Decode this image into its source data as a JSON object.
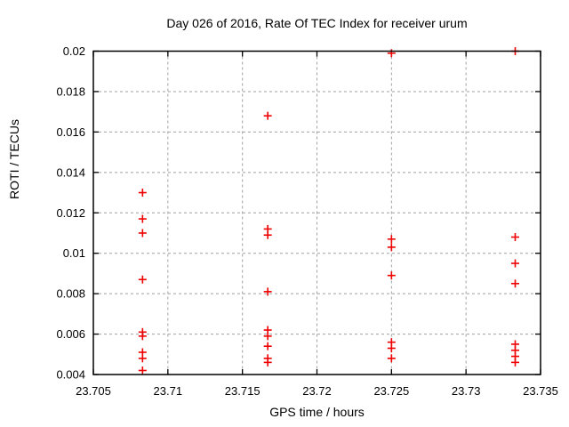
{
  "chart_data": {
    "type": "scatter",
    "title": "Day 026 of 2016, Rate Of TEC Index for receiver urum",
    "xlabel": "GPS time / hours",
    "ylabel": "ROTI / TECUs",
    "xlim": [
      23.705,
      23.735
    ],
    "ylim": [
      0.004,
      0.02
    ],
    "xticks": [
      23.705,
      23.71,
      23.715,
      23.72,
      23.725,
      23.73,
      23.735
    ],
    "xtick_labels": [
      "23.705",
      "23.71",
      "23.715",
      "23.72",
      "23.725",
      "23.73",
      "23.735"
    ],
    "yticks": [
      0.004,
      0.006,
      0.008,
      0.01,
      0.012,
      0.014,
      0.016,
      0.018,
      0.02
    ],
    "ytick_labels": [
      "0.004",
      "0.006",
      "0.008",
      "0.01",
      "0.012",
      "0.014",
      "0.016",
      "0.018",
      "0.02"
    ],
    "grid": true,
    "legend_position": "none",
    "marker": "plus",
    "marker_color": "#ee0000",
    "grid_color": "#a0a0a0",
    "border_color": "#000000",
    "series": [
      {
        "name": "ROTI",
        "points": [
          [
            23.7083,
            0.013
          ],
          [
            23.7083,
            0.0117
          ],
          [
            23.7083,
            0.011
          ],
          [
            23.7083,
            0.0087
          ],
          [
            23.7083,
            0.0061
          ],
          [
            23.7083,
            0.0059
          ],
          [
            23.7083,
            0.0051
          ],
          [
            23.7083,
            0.0048
          ],
          [
            23.7083,
            0.0042
          ],
          [
            23.7167,
            0.0168
          ],
          [
            23.7167,
            0.0112
          ],
          [
            23.7167,
            0.0109
          ],
          [
            23.7167,
            0.0081
          ],
          [
            23.7167,
            0.0062
          ],
          [
            23.7167,
            0.0059
          ],
          [
            23.7167,
            0.0054
          ],
          [
            23.7167,
            0.0048
          ],
          [
            23.7167,
            0.0046
          ],
          [
            23.725,
            0.0199
          ],
          [
            23.725,
            0.0107
          ],
          [
            23.725,
            0.0103
          ],
          [
            23.725,
            0.0089
          ],
          [
            23.725,
            0.0056
          ],
          [
            23.725,
            0.0053
          ],
          [
            23.725,
            0.0048
          ],
          [
            23.7333,
            0.02
          ],
          [
            23.7333,
            0.0108
          ],
          [
            23.7333,
            0.0095
          ],
          [
            23.7333,
            0.0085
          ],
          [
            23.7333,
            0.0055
          ],
          [
            23.7333,
            0.0052
          ],
          [
            23.7333,
            0.0049
          ],
          [
            23.7333,
            0.0046
          ]
        ]
      }
    ]
  }
}
